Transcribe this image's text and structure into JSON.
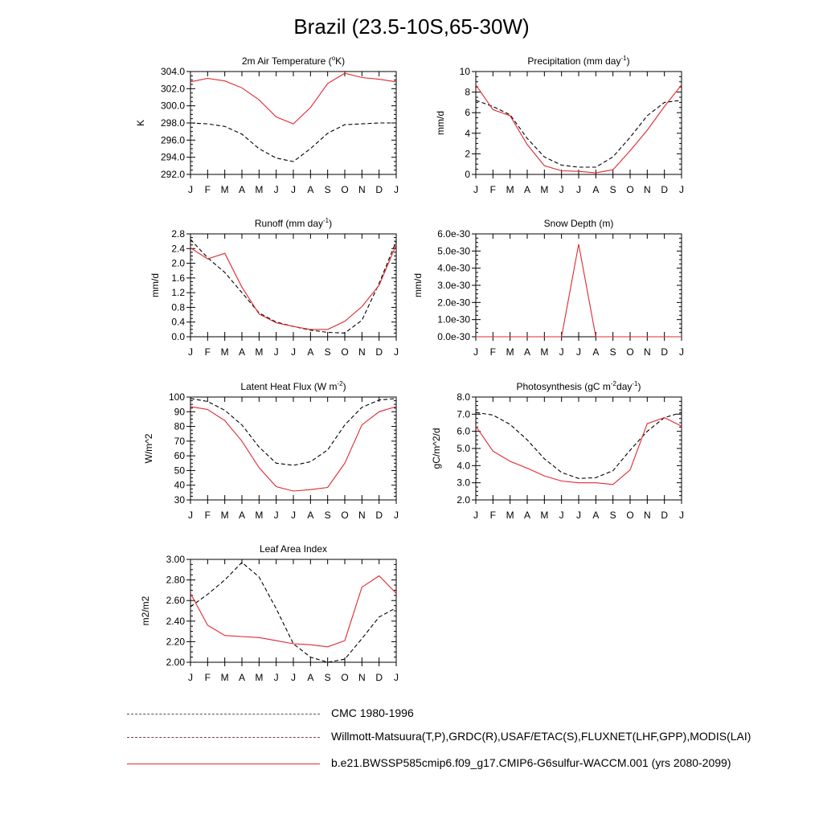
{
  "title": "Brazil (23.5-10S,65-30W)",
  "months": [
    "J",
    "F",
    "M",
    "A",
    "M",
    "J",
    "J",
    "A",
    "S",
    "O",
    "N",
    "D",
    "J"
  ],
  "legend": [
    {
      "label": "CMC 1980-1996",
      "style": "dash",
      "color": "#555555"
    },
    {
      "label": "Willmott-Matsuura(T,P),GRDC(R),USAF/ETAC(S),FLUXNET(LHF,GPP),MODIS(LAI)",
      "style": "dash",
      "color": "#7a3d5c"
    },
    {
      "label": "b.e21.BWSSP585cmip6.f09_g17.CMIP6-G6sulfur-WACCM.001 (yrs 2080-2099)",
      "style": "solid",
      "color": "#e0282e"
    }
  ],
  "chart_data": [
    {
      "id": "temp",
      "type": "line",
      "title": "2m Air Temperature (",
      "title_sup": "o",
      "title_after": "K)",
      "ylabel": "K",
      "ylim": [
        292,
        304
      ],
      "yticks": [
        292,
        294,
        296,
        298,
        300,
        302,
        304
      ],
      "ytick_labels": [
        "292.0",
        "294.0",
        "296.0",
        "298.0",
        "300.0",
        "302.0",
        "304.0"
      ],
      "series": [
        {
          "kind": "obs",
          "values": [
            298.0,
            297.9,
            297.6,
            296.7,
            295.0,
            293.9,
            293.5,
            295.0,
            296.8,
            297.8,
            297.9,
            298.0,
            298.0
          ]
        },
        {
          "kind": "model",
          "values": [
            302.8,
            303.2,
            302.9,
            302.1,
            300.7,
            298.7,
            297.9,
            299.8,
            302.6,
            303.8,
            303.3,
            303.1,
            302.8
          ]
        }
      ]
    },
    {
      "id": "precip",
      "type": "line",
      "title": "Precipitation (mm day",
      "title_sup": "-1",
      "title_after": ")",
      "ylabel": "mm/d",
      "ylim": [
        0,
        10
      ],
      "yticks": [
        0,
        2,
        4,
        6,
        8,
        10
      ],
      "ytick_labels": [
        "0",
        "2",
        "4",
        "6",
        "8",
        "10"
      ],
      "series": [
        {
          "kind": "obs",
          "values": [
            7.2,
            6.6,
            5.8,
            3.5,
            1.7,
            0.9,
            0.7,
            0.7,
            1.7,
            3.6,
            5.7,
            7.0,
            7.2
          ]
        },
        {
          "kind": "model",
          "values": [
            8.7,
            6.3,
            5.7,
            2.9,
            0.85,
            0.35,
            0.3,
            0.15,
            0.45,
            2.3,
            4.3,
            6.6,
            8.7
          ]
        }
      ]
    },
    {
      "id": "runoff",
      "type": "line",
      "title": "Runoff (mm day",
      "title_sup": "-1",
      "title_after": ")",
      "ylabel": "mm/d",
      "ylim": [
        0,
        2.8
      ],
      "yticks": [
        0,
        0.4,
        0.8,
        1.2,
        1.6,
        2.0,
        2.4,
        2.8
      ],
      "ytick_labels": [
        "0.0",
        "0.4",
        "0.8",
        "1.2",
        "1.6",
        "2.0",
        "2.4",
        "2.8"
      ],
      "series": [
        {
          "kind": "obs",
          "values": [
            2.65,
            2.15,
            1.75,
            1.2,
            0.65,
            0.4,
            0.28,
            0.18,
            0.12,
            0.1,
            0.45,
            1.45,
            2.6
          ]
        },
        {
          "kind": "model",
          "values": [
            2.42,
            2.12,
            2.27,
            1.35,
            0.62,
            0.38,
            0.28,
            0.2,
            0.2,
            0.42,
            0.82,
            1.4,
            2.5
          ]
        }
      ]
    },
    {
      "id": "snow",
      "type": "line",
      "title": "Snow Depth (m)",
      "title_sup": "",
      "title_after": "",
      "ylabel": "mm/d",
      "ylim": [
        0,
        6e-30
      ],
      "yticks": [
        0,
        1e-30,
        2e-30,
        3e-30,
        4e-30,
        5e-30,
        6e-30
      ],
      "ytick_labels": [
        "0.0e-30",
        "1.0e-30",
        "2.0e-30",
        "3.0e-30",
        "4.0e-30",
        "5.0e-30",
        "6.0e-30"
      ],
      "series": [
        {
          "kind": "obs",
          "values": [
            0,
            0,
            0,
            0,
            0,
            0,
            0,
            0,
            0,
            0,
            0,
            0,
            0
          ]
        },
        {
          "kind": "model",
          "values": [
            0,
            0,
            0,
            0,
            0,
            0,
            5.4e-30,
            0,
            0,
            0,
            0,
            0,
            0
          ]
        }
      ]
    },
    {
      "id": "lhf",
      "type": "line",
      "title": "Latent Heat Flux (W m",
      "title_sup": "-2",
      "title_after": ")",
      "ylabel": "W/m^2",
      "ylim": [
        30,
        100
      ],
      "yticks": [
        30,
        40,
        50,
        60,
        70,
        80,
        90,
        100
      ],
      "ytick_labels": [
        "30",
        "40",
        "50",
        "60",
        "70",
        "80",
        "90",
        "100"
      ],
      "series": [
        {
          "kind": "obs",
          "values": [
            99,
            97,
            91,
            81,
            66,
            55,
            53.5,
            56,
            64,
            81,
            93,
            98,
            99
          ]
        },
        {
          "kind": "model",
          "values": [
            93.5,
            91.5,
            84,
            70,
            52,
            39,
            36,
            37,
            38.5,
            55,
            81,
            90,
            93.5
          ]
        }
      ]
    },
    {
      "id": "gpp",
      "type": "line",
      "title": "Photosynthesis (gC m",
      "title_sup": "-2",
      "title_after": "day",
      "title_sup2": "-1",
      "title_end": ")",
      "ylabel": "gC/m^2/d",
      "ylim": [
        2,
        8
      ],
      "yticks": [
        2,
        3,
        4,
        5,
        6,
        7,
        8
      ],
      "ytick_labels": [
        "2.0",
        "3.0",
        "4.0",
        "5.0",
        "6.0",
        "7.0",
        "8.0"
      ],
      "series": [
        {
          "kind": "obs",
          "values": [
            7.1,
            6.95,
            6.4,
            5.5,
            4.4,
            3.6,
            3.25,
            3.3,
            3.7,
            4.9,
            6.0,
            6.8,
            7.1
          ]
        },
        {
          "kind": "model",
          "values": [
            6.3,
            4.85,
            4.25,
            3.85,
            3.4,
            3.1,
            3.0,
            3.0,
            2.9,
            3.75,
            6.45,
            6.8,
            6.3
          ]
        }
      ]
    },
    {
      "id": "lai",
      "type": "line",
      "title": "Leaf Area Index",
      "title_sup": "",
      "title_after": "",
      "ylabel": "m2/m2",
      "ylim": [
        2.0,
        3.0
      ],
      "yticks": [
        2.0,
        2.2,
        2.4,
        2.6,
        2.8,
        3.0
      ],
      "ytick_labels": [
        "2.00",
        "2.20",
        "2.40",
        "2.60",
        "2.80",
        "3.00"
      ],
      "series": [
        {
          "kind": "obs",
          "values": [
            2.54,
            2.66,
            2.8,
            2.97,
            2.83,
            2.52,
            2.18,
            2.05,
            2.0,
            2.03,
            2.23,
            2.44,
            2.53
          ]
        },
        {
          "kind": "model",
          "values": [
            2.67,
            2.36,
            2.26,
            2.25,
            2.24,
            2.21,
            2.18,
            2.17,
            2.15,
            2.21,
            2.73,
            2.84,
            2.67
          ]
        }
      ]
    }
  ]
}
